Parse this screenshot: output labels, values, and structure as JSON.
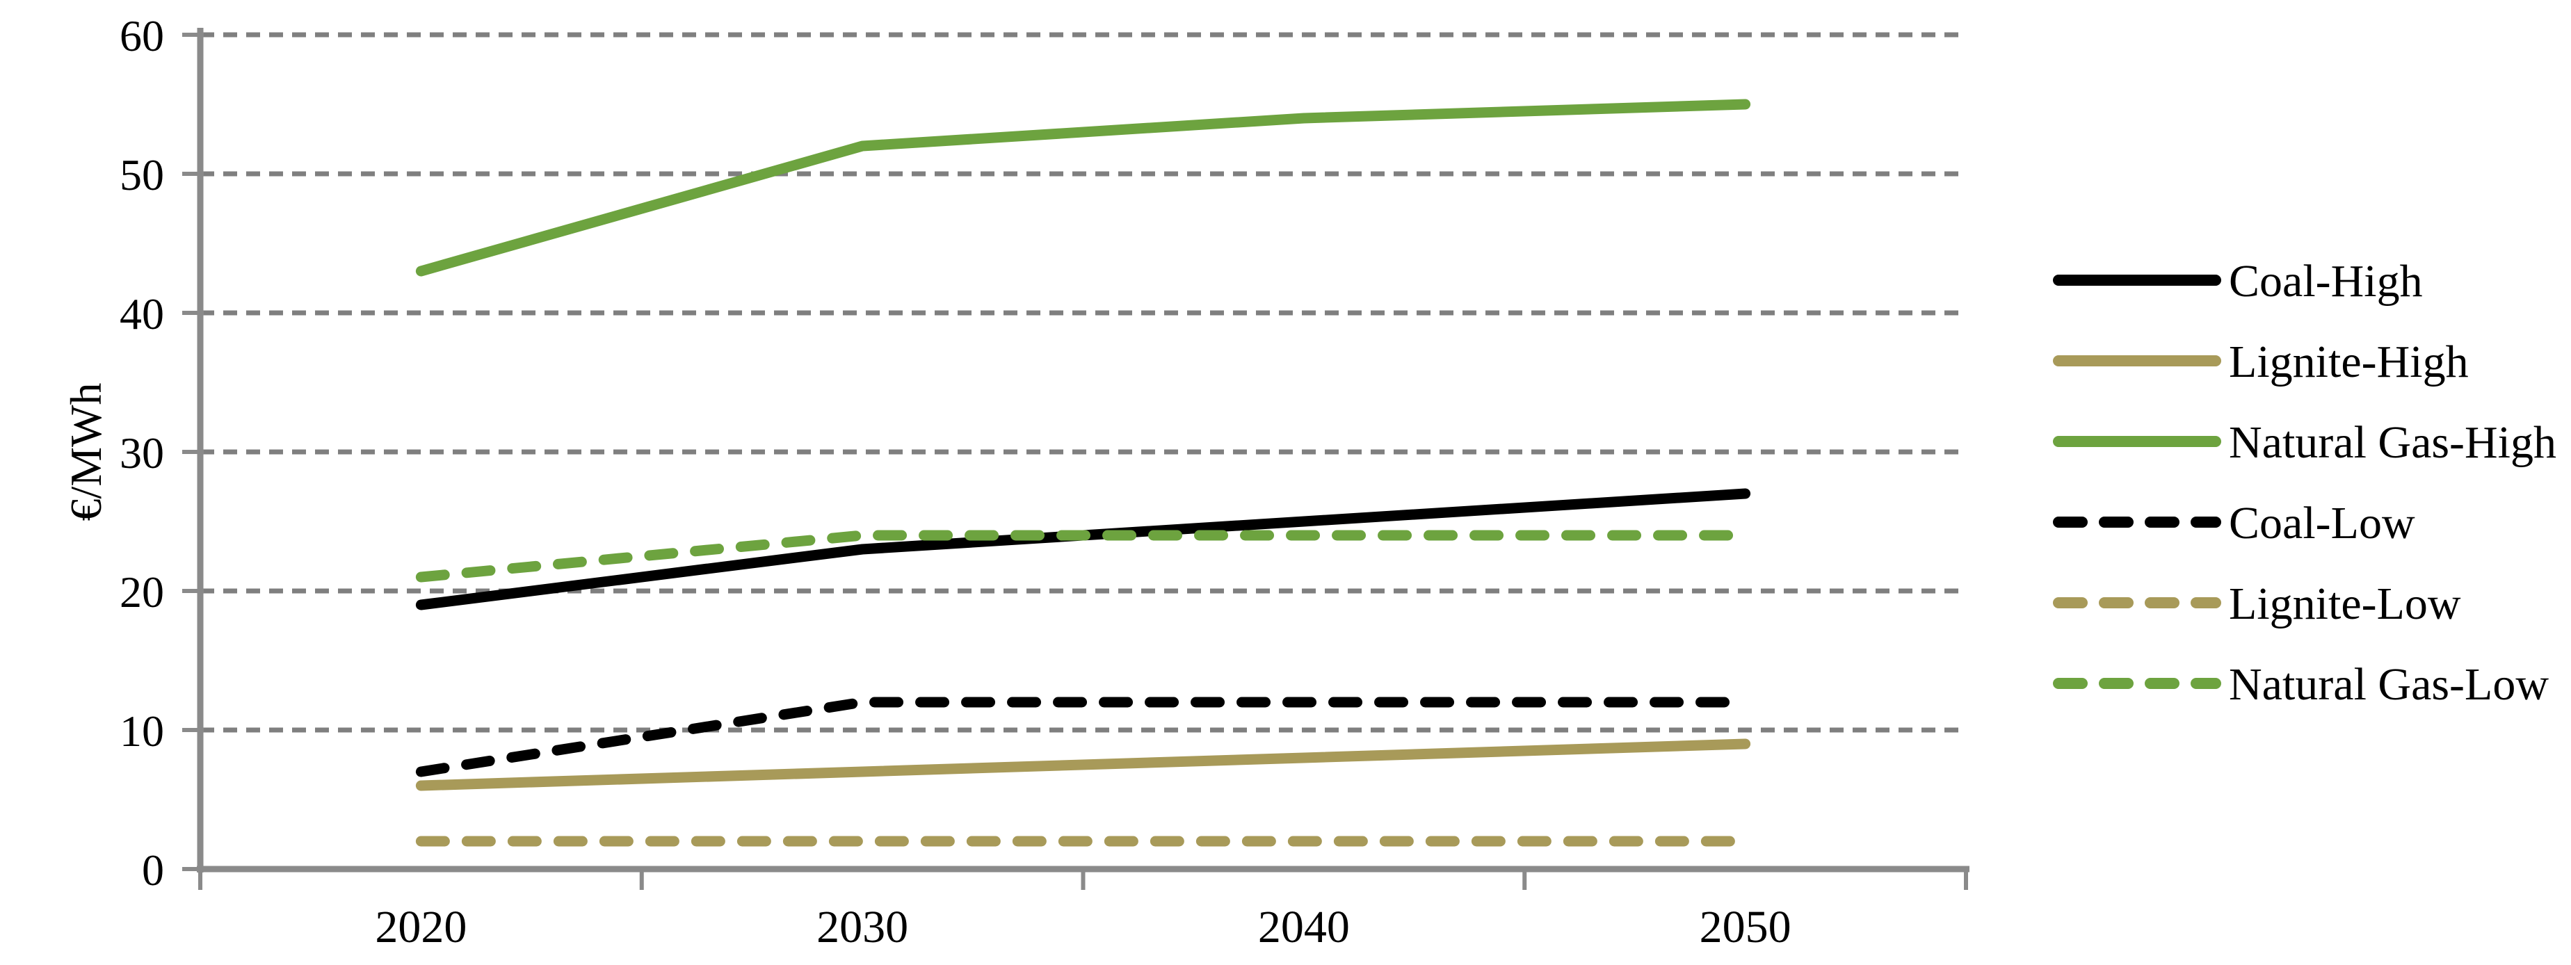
{
  "figure": {
    "description": "Line chart of fuel price scenarios in EUR per MWh from 2020 to 2050"
  },
  "chart_data": {
    "type": "line",
    "title": "",
    "xlabel": "",
    "ylabel": "€/MWh",
    "categories": [
      "2020",
      "2030",
      "2040",
      "2050"
    ],
    "y_ticks": [
      0,
      10,
      20,
      30,
      40,
      50,
      60
    ],
    "ylim": [
      0,
      60
    ],
    "grid": "horizontal-dashed",
    "legend_position": "right",
    "grid_color": "#7F7F7F",
    "axis_color": "#8A8A8A",
    "text_color": "#000000",
    "background_color": "#FFFFFF",
    "series": [
      {
        "name": "Coal-High",
        "style": "solid",
        "color": "#000000",
        "values": [
          19,
          23,
          25,
          27
        ]
      },
      {
        "name": "Lignite-High",
        "style": "solid",
        "color": "#A89A59",
        "values": [
          6,
          7,
          8,
          9
        ]
      },
      {
        "name": "Natural Gas-High",
        "style": "solid",
        "color": "#6DA33F",
        "values": [
          43,
          52,
          54,
          55
        ]
      },
      {
        "name": "Coal-Low",
        "style": "dashed",
        "color": "#000000",
        "values": [
          7,
          12,
          12,
          12
        ]
      },
      {
        "name": "Lignite-Low",
        "style": "dashed",
        "color": "#A89A59",
        "values": [
          2,
          2,
          2,
          2
        ]
      },
      {
        "name": "Natural Gas-Low",
        "style": "dashed",
        "color": "#6DA33F",
        "values": [
          21,
          24,
          24,
          24
        ]
      }
    ]
  }
}
